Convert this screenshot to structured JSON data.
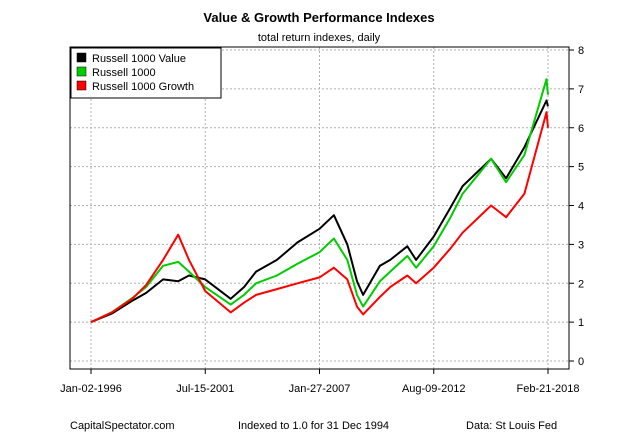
{
  "chart_data": {
    "type": "line",
    "title": "Value & Growth Performance Indexes",
    "subtitle": "total return indexes, daily",
    "x_ticks": [
      "Jan-02-1996",
      "Jul-15-2001",
      "Jan-27-2007",
      "Aug-09-2012",
      "Feb-21-2018"
    ],
    "x_range": [
      "1996-01-02",
      "2018-02-21"
    ],
    "y_ticks": [
      0,
      1,
      2,
      3,
      4,
      5,
      6,
      7,
      8
    ],
    "ylim": [
      0,
      8
    ],
    "y_axis_side": "right",
    "grid": true,
    "legend_position": "top-left",
    "x": [
      "1996-01-02",
      "1997-01-02",
      "1998-01-02",
      "1998-09-01",
      "1999-07-01",
      "2000-03-24",
      "2000-10-01",
      "2001-07-15",
      "2002-10-09",
      "2003-06-01",
      "2004-01-02",
      "2005-01-03",
      "2006-01-03",
      "2007-01-27",
      "2007-10-09",
      "2008-06-01",
      "2008-11-20",
      "2009-03-09",
      "2009-12-31",
      "2010-07-01",
      "2011-04-29",
      "2011-10-03",
      "2012-08-09",
      "2013-06-03",
      "2014-01-02",
      "2015-05-21",
      "2016-02-11",
      "2016-12-30",
      "2018-01-26",
      "2018-02-21"
    ],
    "series": [
      {
        "name": "Russell 1000 Value",
        "color": "#000000",
        "values": [
          1.0,
          1.22,
          1.55,
          1.75,
          2.1,
          2.05,
          2.2,
          2.1,
          1.6,
          1.9,
          2.3,
          2.6,
          3.05,
          3.4,
          3.75,
          3.0,
          2.05,
          1.7,
          2.45,
          2.6,
          2.95,
          2.6,
          3.2,
          3.95,
          4.5,
          5.2,
          4.7,
          5.5,
          6.7,
          6.55
        ]
      },
      {
        "name": "Russell 1000",
        "color": "#00cc00",
        "values": [
          1.0,
          1.25,
          1.62,
          1.9,
          2.45,
          2.55,
          2.3,
          1.9,
          1.45,
          1.7,
          2.0,
          2.2,
          2.5,
          2.8,
          3.15,
          2.6,
          1.7,
          1.4,
          2.05,
          2.3,
          2.7,
          2.4,
          2.95,
          3.7,
          4.3,
          5.2,
          4.6,
          5.3,
          7.25,
          6.85
        ]
      },
      {
        "name": "Russell 1000 Growth",
        "color": "#ff0000",
        "values": [
          1.0,
          1.25,
          1.6,
          1.95,
          2.6,
          3.25,
          2.6,
          1.8,
          1.25,
          1.5,
          1.7,
          1.85,
          2.0,
          2.15,
          2.4,
          2.1,
          1.4,
          1.2,
          1.65,
          1.9,
          2.2,
          2.0,
          2.4,
          2.9,
          3.3,
          4.0,
          3.7,
          4.3,
          6.4,
          6.0
        ]
      }
    ]
  },
  "footer": {
    "left": "CapitalSpectator.com",
    "center": "Indexed to 1.0 for 31 Dec 1994",
    "right": "Data: St Louis Fed"
  }
}
